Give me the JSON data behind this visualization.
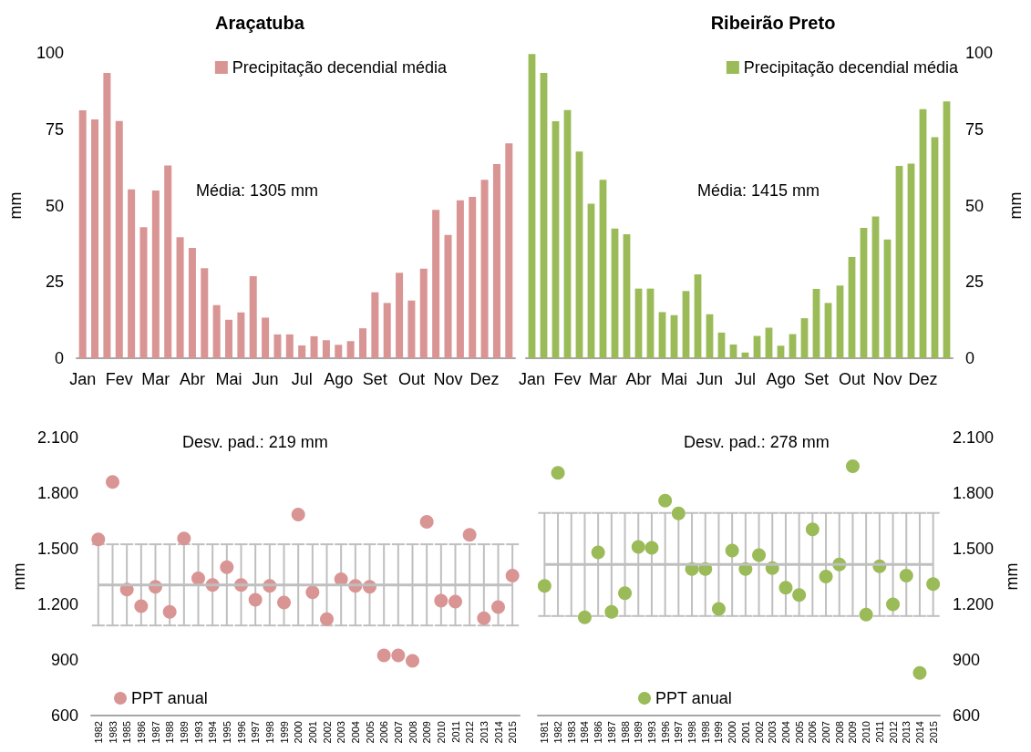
{
  "chart_data": [
    {
      "type": "bar",
      "title": "Araçatuba",
      "ylabel": "mm",
      "annotations": [
        "Média: 1305 mm"
      ],
      "categories": [
        "Jan",
        null,
        null,
        "Fev",
        null,
        null,
        "Mar",
        null,
        null,
        "Abr",
        null,
        null,
        "Mai",
        null,
        null,
        "Jun",
        null,
        null,
        "Jul",
        null,
        null,
        "Ago",
        null,
        null,
        "Set",
        null,
        null,
        "Out",
        null,
        null,
        "Nov",
        null,
        null,
        "Dez",
        null,
        null
      ],
      "series": [
        {
          "name": "Precipitação decendial média",
          "color": "#d99594",
          "values": [
            81.2,
            78.2,
            93.4,
            77.7,
            55.3,
            42.9,
            54.9,
            63.1,
            39.6,
            36.1,
            29.5,
            17.4,
            12.6,
            15.0,
            26.9,
            13.3,
            7.8,
            7.8,
            4.2,
            7.2,
            5.9,
            4.4,
            5.6,
            9.8,
            21.6,
            18.1,
            28.0,
            18.9,
            29.3,
            48.6,
            40.4,
            51.7,
            52.8,
            58.4,
            63.6,
            70.4
          ]
        }
      ],
      "ylim": [
        0,
        100
      ],
      "yticks": [
        0,
        25,
        50,
        75,
        100
      ],
      "grid": false,
      "legend": "top right"
    },
    {
      "type": "bar",
      "title": "Ribeirão Preto",
      "y2label": "mm",
      "annotations": [
        "Média: 1415 mm"
      ],
      "categories": [
        "Jan",
        null,
        null,
        "Fev",
        null,
        null,
        "Mar",
        null,
        null,
        "Abr",
        null,
        null,
        "Mai",
        null,
        null,
        "Jun",
        null,
        null,
        "Jul",
        null,
        null,
        "Ago",
        null,
        null,
        "Set",
        null,
        null,
        "Out",
        null,
        null,
        "Nov",
        null,
        null,
        "Dez",
        null,
        null
      ],
      "series": [
        {
          "name": "Precipitação decendial média",
          "color": "#9bbb59",
          "axis": "y2",
          "values": [
            99.6,
            93.4,
            77.6,
            81.3,
            67.7,
            50.6,
            58.4,
            42.5,
            40.6,
            22.8,
            22.8,
            15.1,
            14.1,
            22.0,
            27.5,
            14.4,
            8.4,
            4.5,
            1.9,
            7.3,
            10.0,
            4.1,
            7.9,
            13.1,
            22.7,
            18.1,
            23.8,
            33.1,
            42.7,
            46.4,
            38.9,
            63.0,
            63.7,
            81.6,
            72.4,
            84.1
          ]
        }
      ],
      "y2lim": [
        0,
        100
      ],
      "y2ticks": [
        0,
        25,
        50,
        75,
        100
      ],
      "grid": false,
      "legend": "top right"
    },
    {
      "type": "scatter",
      "ylabel": "mm",
      "annotations": [
        "Desv. pad.: 219 mm"
      ],
      "categories": [
        "1982",
        "1983",
        "1985",
        "1986",
        "1987",
        "1988",
        "1989",
        "1993",
        "1994",
        "1995",
        "1996",
        "1997",
        "1998",
        "1999",
        "2000",
        "2001",
        "2002",
        "2003",
        "2004",
        "2005",
        "2006",
        "2007",
        "2008",
        "2009",
        "2010",
        "2011",
        "2012",
        "2013",
        "2014",
        "2015"
      ],
      "series": [
        {
          "type": "line",
          "color": "#bfbfbf",
          "marker": "none",
          "values": [
            1305,
            1305,
            1305,
            1305,
            1305,
            1305,
            1305,
            1305,
            1305,
            1305,
            1305,
            1305,
            1305,
            1305,
            1305,
            1305,
            1305,
            1305,
            1305,
            1305,
            1305,
            1305,
            1305,
            1305,
            1305,
            1305,
            1305,
            1305,
            1305,
            1305
          ],
          "errors": [
            219,
            219,
            219,
            219,
            219,
            219,
            219,
            219,
            219,
            219,
            219,
            219,
            219,
            219,
            219,
            219,
            219,
            219,
            219,
            219,
            219,
            219,
            219,
            219,
            219,
            219,
            219,
            219,
            219,
            219
          ]
        },
        {
          "name": "PPT anual",
          "color": "#d99594",
          "values": [
            1550,
            1860,
            1280,
            1190,
            1295,
            1160,
            1555,
            1340,
            1305,
            1400,
            1305,
            1225,
            1300,
            1210,
            1685,
            1265,
            1120,
            1335,
            1300,
            1295,
            925,
            925,
            895,
            1645,
            1220,
            1215,
            1575,
            1125,
            1185,
            1355
          ]
        }
      ],
      "ylim": [
        600,
        2100
      ],
      "yticks": [
        600,
        900,
        {
          "value": 1200,
          "label": "1.200"
        },
        {
          "value": 1500,
          "label": "1.500"
        },
        {
          "value": 1800,
          "label": "1.800"
        },
        {
          "value": 2100,
          "label": "2.100"
        }
      ],
      "grid": false,
      "legend": "bottom left",
      "marker": "circle"
    },
    {
      "type": "scatter",
      "y2label": "mm",
      "annotations": [
        "Desv. pad.: 278 mm"
      ],
      "categories": [
        "1981",
        "1982",
        "1983",
        "1984",
        "1986",
        "1987",
        "1988",
        "1989",
        "1993",
        "1996",
        "1997",
        "1998",
        "1998",
        "1999",
        "2000",
        "2001",
        "2002",
        "2003",
        "2004",
        "2005",
        "2006",
        "2007",
        "2008",
        "2009",
        "2010",
        "2011",
        "2012",
        "2013",
        "2014",
        "2015"
      ],
      "series": [
        {
          "type": "line",
          "color": "#bfbfbf",
          "marker": "none",
          "axis": "y2",
          "values": [
            1415,
            1415,
            1415,
            1415,
            1415,
            1415,
            1415,
            1415,
            1415,
            1415,
            1415,
            1415,
            1415,
            1415,
            1415,
            1415,
            1415,
            1415,
            1415,
            1415,
            1415,
            1415,
            1415,
            1415,
            1415,
            1415,
            1415,
            1415,
            1415,
            1415
          ],
          "errors": [
            278,
            278,
            278,
            278,
            278,
            278,
            278,
            278,
            278,
            278,
            278,
            278,
            278,
            278,
            278,
            278,
            278,
            278,
            278,
            278,
            278,
            278,
            278,
            278,
            278,
            278,
            278,
            278,
            278,
            278
          ]
        },
        {
          "name": "PPT anual",
          "color": "#9bbb59",
          "axis": "y2",
          "values": [
            1300,
            1910,
            null,
            1130,
            1480,
            1160,
            1260,
            1510,
            1505,
            1760,
            1690,
            1390,
            1390,
            1175,
            1490,
            1390,
            1465,
            1395,
            1290,
            1250,
            1605,
            1350,
            1415,
            1945,
            1145,
            1405,
            1200,
            1355,
            830,
            1310
          ]
        }
      ],
      "y2lim": [
        600,
        2100
      ],
      "y2ticks": [
        600,
        900,
        {
          "value": 1200,
          "label": "1.200"
        },
        {
          "value": 1500,
          "label": "1.500"
        },
        {
          "value": 1800,
          "label": "1.800"
        },
        {
          "value": 2100,
          "label": "2.100"
        }
      ],
      "grid": false,
      "legend": "bottom left",
      "marker": "circle"
    }
  ]
}
